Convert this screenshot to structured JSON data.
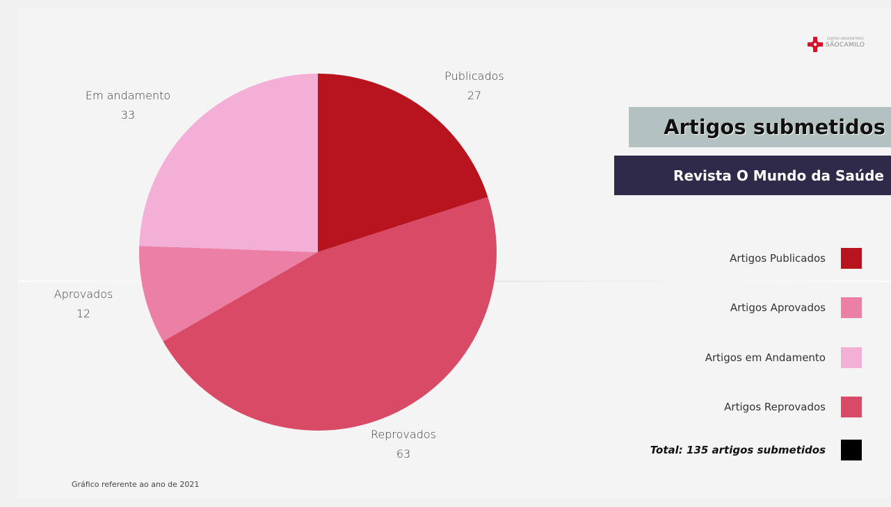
{
  "header": {
    "title": "Artigos submetidos",
    "subtitle": "Revista O Mundo da Saúde"
  },
  "logo": {
    "small_text": "CENTRO UNIVERSITÁRIO",
    "name": "SÃOCAMILO",
    "icon": "red-cross-logo-icon"
  },
  "chart_data": {
    "type": "pie",
    "title": "Artigos submetidos",
    "subtitle": "Revista O Mundo da Saúde",
    "start_angle_deg": 0,
    "direction": "clockwise",
    "slices": [
      {
        "label": "Publicados",
        "value": 27,
        "color": "#b8141d"
      },
      {
        "label": "Reprovados",
        "value": 63,
        "color": "#d94a66"
      },
      {
        "label": "Aprovados",
        "value": 12,
        "color": "#ec7fa6"
      },
      {
        "label": "Em andamento",
        "value": 33,
        "color": "#f4afd7"
      }
    ],
    "total": 135,
    "legend_placement": "right"
  },
  "legend": {
    "items": [
      {
        "label": "Artigos Publicados",
        "color": "#b8141d"
      },
      {
        "label": "Artigos Aprovados",
        "color": "#ec7fa6"
      },
      {
        "label": "Artigos em Andamento",
        "color": "#f4afd7"
      },
      {
        "label": "Artigos Reprovados",
        "color": "#d94a66"
      }
    ],
    "total_label": "Total: 135 artigos submetidos",
    "total_color": "#000000"
  },
  "footnote": "Gráfico referente ao ano de 2021"
}
